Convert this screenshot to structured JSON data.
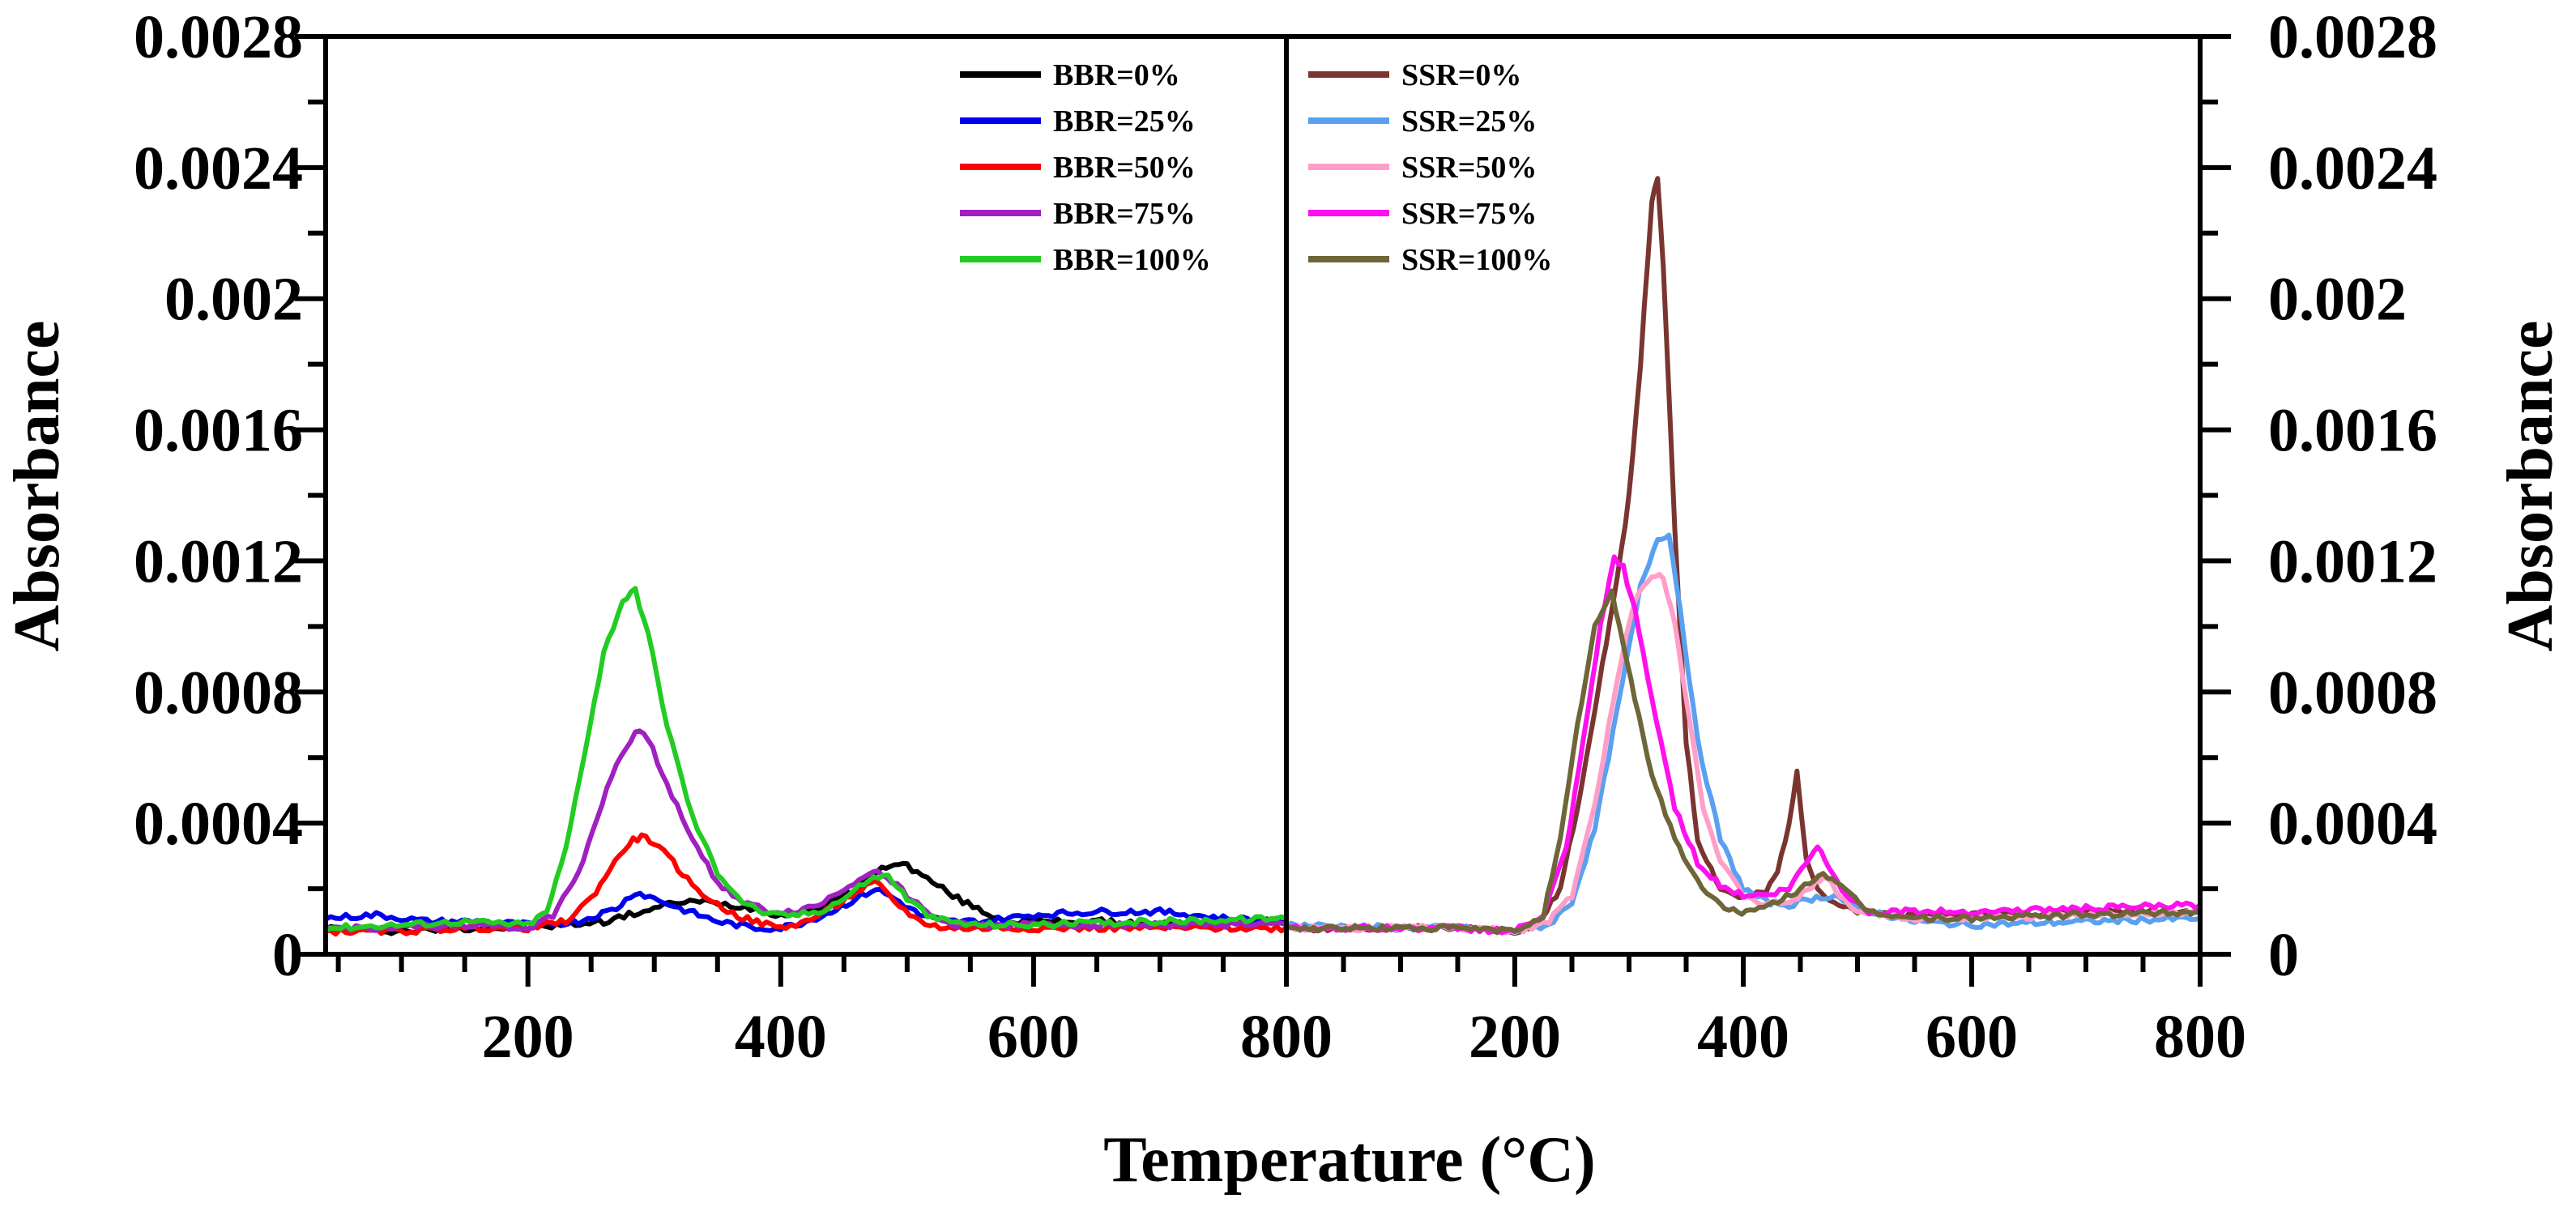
{
  "chart_data": [
    {
      "type": "line",
      "panel": "left",
      "title": "",
      "xlabel": "Temperature (°C)",
      "ylabel": "Absorbance",
      "xlim": [
        40,
        800
      ],
      "ylim": [
        0,
        0.0028
      ],
      "x_ticks": [
        200,
        400,
        600,
        800
      ],
      "y_ticks": [
        "0",
        "0.0004",
        "0.0008",
        "0.0012",
        "0.0016",
        "0.002",
        "0.0024",
        "0.0028"
      ],
      "y_ticks_numeric": [
        0,
        0.0004,
        0.0008,
        0.0012,
        0.0016,
        0.002,
        0.0024,
        0.0028
      ],
      "legend_position": "top-right",
      "series": [
        {
          "name": "BBR=0%",
          "color": "#000000",
          "x": [
            40,
            100,
            150,
            200,
            230,
            260,
            280,
            300,
            320,
            340,
            360,
            380,
            400,
            420,
            440,
            460,
            480,
            490,
            500,
            520,
            540,
            560,
            580,
            600,
            650,
            700,
            750,
            800
          ],
          "y": [
            8e-05,
            7e-05,
            8e-05,
            8e-05,
            9e-05,
            0.0001,
            0.00012,
            0.00014,
            0.00016,
            0.00016,
            0.00015,
            0.00014,
            0.00012,
            0.00013,
            0.00016,
            0.0002,
            0.00026,
            0.00028,
            0.00027,
            0.00022,
            0.00017,
            0.00013,
            0.0001,
            0.0001,
            0.0001,
            9e-05,
            0.0001,
            0.0001
          ]
        },
        {
          "name": "BBR=25%",
          "color": "#0000ee",
          "x": [
            40,
            80,
            120,
            160,
            200,
            240,
            270,
            285,
            300,
            320,
            350,
            380,
            400,
            420,
            440,
            460,
            475,
            490,
            510,
            530,
            560,
            600,
            650,
            700,
            750,
            800
          ],
          "y": [
            0.00011,
            0.00012,
            0.0001,
            0.0001,
            9e-05,
            0.0001,
            0.00014,
            0.00019,
            0.00017,
            0.00014,
            0.0001,
            8e-05,
            8e-05,
            0.0001,
            0.00013,
            0.00017,
            0.0002,
            0.00017,
            0.00012,
            0.0001,
            0.0001,
            0.00012,
            0.00013,
            0.00013,
            0.00011,
            0.0001
          ]
        },
        {
          "name": "BBR=50%",
          "color": "#ff0000",
          "x": [
            40,
            100,
            150,
            200,
            230,
            250,
            265,
            280,
            290,
            300,
            315,
            330,
            350,
            370,
            400,
            420,
            440,
            460,
            475,
            490,
            510,
            530,
            560,
            600,
            700,
            800
          ],
          "y": [
            7e-05,
            7e-05,
            8e-05,
            8e-05,
            0.0001,
            0.00017,
            0.00026,
            0.00034,
            0.00036,
            0.00034,
            0.00028,
            0.00021,
            0.00015,
            0.00011,
            8e-05,
            0.0001,
            0.00014,
            0.00019,
            0.00022,
            0.00016,
            0.0001,
            8e-05,
            8e-05,
            8e-05,
            8e-05,
            8e-05
          ]
        },
        {
          "name": "BBR=75%",
          "color": "#a020c0",
          "x": [
            40,
            100,
            150,
            200,
            220,
            240,
            255,
            270,
            285,
            295,
            310,
            330,
            350,
            370,
            390,
            410,
            430,
            450,
            470,
            480,
            500,
            520,
            540,
            600,
            700,
            800
          ],
          "y": [
            8e-05,
            8e-05,
            9e-05,
            8e-05,
            0.00012,
            0.00025,
            0.00042,
            0.00058,
            0.00068,
            0.00066,
            0.00052,
            0.00035,
            0.00022,
            0.00016,
            0.00013,
            0.00013,
            0.00015,
            0.0002,
            0.00025,
            0.00025,
            0.00018,
            0.00011,
            9e-05,
            9e-05,
            9e-05,
            9e-05
          ]
        },
        {
          "name": "BBR=100%",
          "color": "#22cc22",
          "x": [
            40,
            100,
            150,
            200,
            215,
            230,
            245,
            260,
            275,
            285,
            295,
            310,
            330,
            350,
            370,
            390,
            410,
            430,
            450,
            470,
            485,
            500,
            520,
            550,
            600,
            700,
            800
          ],
          "y": [
            8e-05,
            9e-05,
            0.0001,
            9e-05,
            0.00013,
            0.00032,
            0.00062,
            0.00092,
            0.00108,
            0.00111,
            0.00098,
            0.0007,
            0.00042,
            0.00025,
            0.00016,
            0.00012,
            0.00012,
            0.00013,
            0.00017,
            0.00023,
            0.00024,
            0.00017,
            0.00011,
            9e-05,
            9e-05,
            0.0001,
            0.00011
          ]
        }
      ]
    },
    {
      "type": "line",
      "panel": "right",
      "title": "",
      "xlabel": "Temperature (°C)",
      "ylabel": "Absorbance",
      "xlim": [
        0,
        800
      ],
      "ylim": [
        0,
        0.0028
      ],
      "x_ticks": [
        200,
        400,
        600,
        800
      ],
      "y_ticks": [
        "0",
        "0.0004",
        "0.0008",
        "0.0012",
        "0.0016",
        "0.002",
        "0.0024",
        "0.0028"
      ],
      "y_ticks_numeric": [
        0,
        0.0004,
        0.0008,
        0.0012,
        0.0016,
        0.002,
        0.0024,
        0.0028
      ],
      "legend_position": "top-left",
      "series": [
        {
          "name": "SSR=0%",
          "color": "#7a3530",
          "x": [
            0,
            100,
            150,
            200,
            220,
            240,
            255,
            270,
            280,
            290,
            300,
            310,
            320,
            325,
            330,
            340,
            350,
            360,
            380,
            400,
            420,
            430,
            440,
            447,
            455,
            465,
            480,
            500,
            550,
            600,
            700,
            800
          ],
          "y": [
            8e-05,
            8e-05,
            8e-05,
            7e-05,
            9e-05,
            0.0002,
            0.00045,
            0.00075,
            0.00095,
            0.00115,
            0.0014,
            0.0018,
            0.0023,
            0.00236,
            0.0021,
            0.0013,
            0.00065,
            0.00035,
            0.0002,
            0.00017,
            0.00019,
            0.00025,
            0.0004,
            0.00056,
            0.0003,
            0.0002,
            0.00015,
            0.00013,
            0.00012,
            0.00012,
            0.00013,
            0.00013
          ]
        },
        {
          "name": "SSR=25%",
          "color": "#5aa0f0",
          "x": [
            0,
            100,
            150,
            200,
            230,
            250,
            270,
            290,
            310,
            325,
            335,
            345,
            360,
            380,
            400,
            420,
            440,
            460,
            480,
            500,
            550,
            600,
            700,
            800
          ],
          "y": [
            9e-05,
            8e-05,
            8e-05,
            7e-05,
            9e-05,
            0.00016,
            0.00038,
            0.00075,
            0.00112,
            0.00127,
            0.00128,
            0.00105,
            0.00065,
            0.00035,
            0.0002,
            0.00016,
            0.00015,
            0.00017,
            0.00018,
            0.00014,
            0.0001,
            9e-05,
            0.0001,
            0.00011
          ]
        },
        {
          "name": "SSR=50%",
          "color": "#ff9ec8",
          "x": [
            0,
            100,
            150,
            200,
            230,
            250,
            270,
            290,
            305,
            320,
            330,
            340,
            350,
            365,
            380,
            400,
            420,
            440,
            460,
            470,
            485,
            500,
            550,
            600,
            700,
            800
          ],
          "y": [
            8e-05,
            8e-05,
            8e-05,
            7e-05,
            0.0001,
            0.00018,
            0.00045,
            0.00085,
            0.00108,
            0.00116,
            0.00115,
            0.00102,
            0.00078,
            0.00045,
            0.00028,
            0.00018,
            0.00015,
            0.00016,
            0.0002,
            0.00024,
            0.00018,
            0.00013,
            0.00011,
            0.00011,
            0.00012,
            0.00013
          ]
        },
        {
          "name": "SSR=75%",
          "color": "#ff10ee",
          "x": [
            0,
            100,
            150,
            200,
            225,
            245,
            260,
            275,
            287,
            295,
            305,
            320,
            340,
            360,
            380,
            400,
            420,
            440,
            455,
            465,
            475,
            490,
            510,
            550,
            600,
            700,
            800
          ],
          "y": [
            8e-05,
            8e-05,
            8e-05,
            7e-05,
            0.00012,
            0.00032,
            0.00065,
            0.001,
            0.00121,
            0.00118,
            0.00105,
            0.00078,
            0.00045,
            0.00028,
            0.00021,
            0.00018,
            0.00018,
            0.0002,
            0.00028,
            0.00033,
            0.00027,
            0.00018,
            0.00013,
            0.00013,
            0.00013,
            0.00014,
            0.00015
          ]
        },
        {
          "name": "SSR=100%",
          "color": "#6e6638",
          "x": [
            0,
            100,
            150,
            200,
            225,
            240,
            255,
            270,
            285,
            295,
            305,
            320,
            340,
            360,
            380,
            395,
            410,
            430,
            450,
            470,
            490,
            510,
            550,
            600,
            700,
            800
          ],
          "y": [
            8e-05,
            8e-05,
            8e-05,
            7e-05,
            0.00012,
            0.00035,
            0.0007,
            0.001,
            0.0011,
            0.00095,
            0.00078,
            0.00055,
            0.00035,
            0.00022,
            0.00015,
            0.00013,
            0.00013,
            0.00016,
            0.0002,
            0.00025,
            0.00019,
            0.00013,
            0.00011,
            0.00011,
            0.00012,
            0.00013
          ]
        }
      ]
    }
  ]
}
